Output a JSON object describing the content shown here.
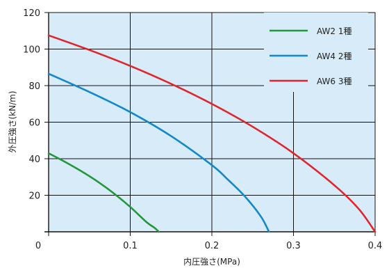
{
  "chart_data": {
    "type": "line",
    "xlabel": "内圧強さ(MPa)",
    "ylabel": "外圧強さ(kN/m)",
    "xlim": [
      0,
      0.4
    ],
    "ylim": [
      0,
      120
    ],
    "x_ticks": [
      "0.1",
      "0.2",
      "0.3",
      "0.4"
    ],
    "x_tick_values": [
      0.1,
      0.2,
      0.3,
      0.4
    ],
    "y_ticks": [
      "20",
      "40",
      "60",
      "80",
      "100",
      "120"
    ],
    "y_tick_values": [
      20,
      40,
      60,
      80,
      100,
      120
    ],
    "origin_label": "0",
    "grid": true,
    "background_color": "#d7ecf8",
    "legend_position": "top-right",
    "series": [
      {
        "name": "AW2 1種",
        "color": "#21963a",
        "x": [
          0,
          0.02,
          0.04,
          0.06,
          0.08,
          0.1,
          0.12,
          0.13,
          0.135
        ],
        "y": [
          43,
          38.3,
          33.2,
          27.5,
          21,
          13.6,
          5.3,
          2.1,
          0
        ]
      },
      {
        "name": "AW4 2種",
        "color": "#1188cc",
        "x": [
          0,
          0.05,
          0.1,
          0.15,
          0.2,
          0.22,
          0.24,
          0.26,
          0.27
        ],
        "y": [
          86.5,
          76.5,
          65.5,
          52.4,
          36.5,
          28.4,
          19.6,
          8.4,
          0
        ]
      },
      {
        "name": "AW6 3種",
        "color": "#e0242b",
        "x": [
          0,
          0.05,
          0.1,
          0.15,
          0.2,
          0.25,
          0.3,
          0.35,
          0.38,
          0.4
        ],
        "y": [
          107.5,
          99.5,
          90.8,
          81,
          70,
          57.5,
          43,
          25.5,
          12.5,
          0
        ]
      }
    ]
  }
}
